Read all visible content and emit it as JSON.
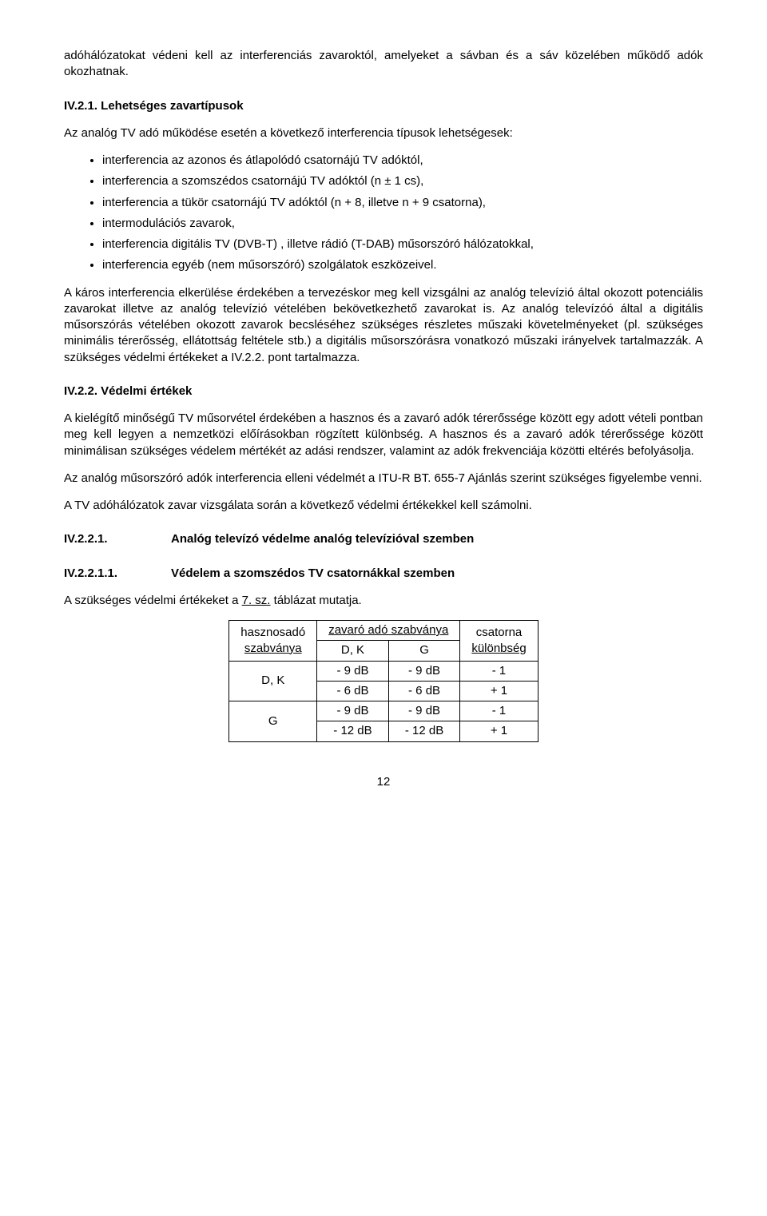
{
  "intro": "adóhálózatokat védeni kell az interferenciás zavaroktól, amelyeket a sávban és a sáv közelében működő adók okozhatnak.",
  "s1": {
    "num": "IV.2.1.",
    "title": "Lehetséges zavartípusok",
    "lead": "Az analóg  TV adó működése esetén a következő interferencia típusok lehetségesek:",
    "items": [
      "interferencia az azonos és átlapolódó csatornájú TV adóktól,",
      "interferencia a szomszédos csatornájú TV adóktól (n ± 1 cs),",
      "interferencia a tükör csatornájú TV adóktól (n + 8, illetve n + 9 csatorna),",
      "intermodulációs zavarok,",
      "interferencia digitális TV (DVB-T) , illetve rádió (T-DAB) műsorszóró hálózatokkal,",
      "interferencia egyéb (nem műsorszóró) szolgálatok eszközeivel."
    ],
    "p1": "A káros interferencia elkerülése érdekében a tervezéskor meg kell vizsgálni az analóg televízió által okozott potenciális zavarokat illetve az analóg televízió vételében bekövetkezhető zavarokat is. Az analóg televízóó által a digitális műsorszórás vételében okozott zavarok becsléséhez szükséges részletes műszaki követelményeket (pl. szükséges minimális térerősség, ellátottság feltétele stb.) a digitális műsorszórásra vonatkozó műszaki irányelvek tartalmazzák. A szükséges védelmi értékeket a IV.2.2. pont tartalmazza."
  },
  "s2": {
    "num": "IV.2.2.",
    "title": "Védelmi értékek",
    "p1": "A kielégítő minőségű TV műsorvétel érdekében a hasznos és a zavaró adók térerőssége között egy adott vételi pontban meg kell legyen a nemzetközi előírásokban rögzített különbség. A hasznos és a zavaró adók térerőssége között minimálisan szükséges védelem mértékét az adási rendszer, valamint az adók frekvenciája közötti eltérés befolyásolja.",
    "p2": "Az analóg műsorszóró adók interferencia elleni védelmét a ITU-R BT. 655-7 Ajánlás szerint szükséges figyelembe venni.",
    "p3": "A TV adóhálózatok zavar vizsgálata során a következő védelmi értékekkel kell számolni."
  },
  "s3": {
    "num": "IV.2.2.1.",
    "title": "Analóg televízó védelme analóg televízióval szemben"
  },
  "s4": {
    "num": "IV.2.2.1.1.",
    "title": "Védelem a szomszédos TV csatornákkal szemben",
    "lead_a": "A szükséges védelmi értékeket a ",
    "lead_u": "7. sz.",
    "lead_b": " táblázat mutatja."
  },
  "table": {
    "head": {
      "c1a": "hasznosadó",
      "c1b": "szabványa",
      "c2top": "zavaró adó szabványa",
      "c2a": "D, K",
      "c2b": "G",
      "c3a": "csatorna",
      "c3b": "különbség"
    },
    "rows": [
      {
        "std": "D, K",
        "dk1": "-  9 dB",
        "g1": "-  9 dB",
        "d1": "- 1",
        "dk2": "-  6 dB",
        "g2": "-  6 dB",
        "d2": "+ 1"
      },
      {
        "std": "G",
        "dk1": "-  9 dB",
        "g1": "-  9 dB",
        "d1": "- 1",
        "dk2": "- 12 dB",
        "g2": "- 12 dB",
        "d2": "+ 1"
      }
    ]
  },
  "page": "12"
}
